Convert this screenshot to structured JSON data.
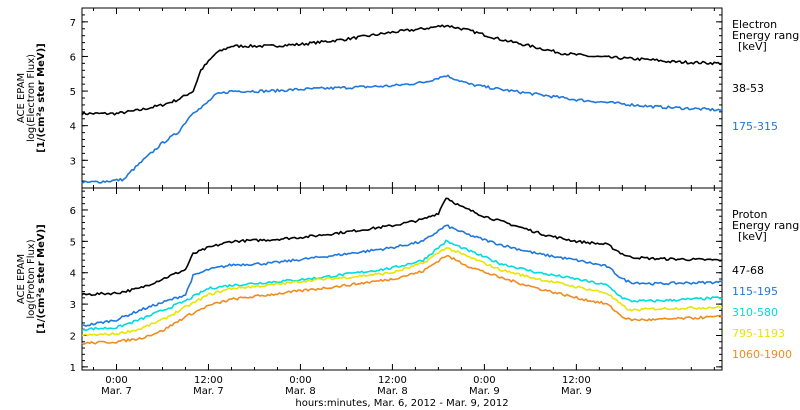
{
  "chart_data": [
    {
      "type": "line",
      "panel": "electron",
      "ylabel_lines": [
        "ACE EPAM",
        "log(Electron Flux)",
        "[1/(cm²s ster MeV)]"
      ],
      "ylim": [
        2.2,
        7.4
      ],
      "yticks": [
        3,
        4,
        5,
        6,
        7
      ],
      "legend_title_lines": [
        "Electron",
        "Energy ranges",
        "[keV]"
      ],
      "grid": false,
      "series": [
        {
          "name": "38-53",
          "color": "#000000",
          "points": [
            [
              -4.5,
              4.35
            ],
            [
              0,
              4.35
            ],
            [
              3,
              4.45
            ],
            [
              6,
              4.6
            ],
            [
              8,
              4.75
            ],
            [
              10,
              5.0
            ],
            [
              11,
              5.6
            ],
            [
              13,
              6.1
            ],
            [
              15,
              6.3
            ],
            [
              20,
              6.3
            ],
            [
              24,
              6.35
            ],
            [
              30,
              6.5
            ],
            [
              36,
              6.7
            ],
            [
              40,
              6.8
            ],
            [
              43,
              6.9
            ],
            [
              46,
              6.75
            ],
            [
              50,
              6.5
            ],
            [
              54,
              6.3
            ],
            [
              58,
              6.1
            ],
            [
              62,
              6.0
            ],
            [
              66,
              5.95
            ],
            [
              70,
              5.9
            ],
            [
              72,
              5.85
            ],
            [
              79,
              5.8
            ]
          ]
        },
        {
          "name": "175-315",
          "color": "#1e78dc",
          "points": [
            [
              -4.5,
              2.35
            ],
            [
              -1,
              2.4
            ],
            [
              1,
              2.45
            ],
            [
              2,
              2.7
            ],
            [
              4,
              3.1
            ],
            [
              6,
              3.5
            ],
            [
              8,
              3.8
            ],
            [
              10,
              4.4
            ],
            [
              11,
              4.5
            ],
            [
              13,
              4.9
            ],
            [
              15,
              5.0
            ],
            [
              20,
              5.0
            ],
            [
              24,
              5.05
            ],
            [
              30,
              5.1
            ],
            [
              36,
              5.15
            ],
            [
              40,
              5.25
            ],
            [
              43,
              5.45
            ],
            [
              46,
              5.2
            ],
            [
              50,
              5.05
            ],
            [
              55,
              4.9
            ],
            [
              60,
              4.75
            ],
            [
              65,
              4.65
            ],
            [
              70,
              4.55
            ],
            [
              79,
              4.45
            ]
          ]
        }
      ]
    },
    {
      "type": "line",
      "panel": "proton",
      "ylabel_lines": [
        "ACE EPAM",
        "log(Proton Flux)",
        "[1/(cm²s ster MeV)]"
      ],
      "ylim": [
        0.9,
        6.7
      ],
      "yticks": [
        1,
        2,
        3,
        4,
        5,
        6
      ],
      "legend_title_lines": [
        "Proton",
        "Energy ranges",
        "[keV]"
      ],
      "grid": false,
      "series": [
        {
          "name": "47-68",
          "color": "#000000",
          "points": [
            [
              -4.5,
              3.3
            ],
            [
              0,
              3.35
            ],
            [
              3,
              3.5
            ],
            [
              6,
              3.8
            ],
            [
              9,
              4.1
            ],
            [
              10,
              4.6
            ],
            [
              12,
              4.8
            ],
            [
              15,
              5.0
            ],
            [
              20,
              5.05
            ],
            [
              25,
              5.15
            ],
            [
              30,
              5.3
            ],
            [
              36,
              5.5
            ],
            [
              40,
              5.7
            ],
            [
              42,
              5.9
            ],
            [
              43,
              6.4
            ],
            [
              45,
              6.1
            ],
            [
              48,
              5.8
            ],
            [
              52,
              5.5
            ],
            [
              56,
              5.2
            ],
            [
              60,
              5.0
            ],
            [
              64,
              4.9
            ],
            [
              66,
              4.6
            ],
            [
              67,
              4.5
            ],
            [
              70,
              4.45
            ],
            [
              79,
              4.4
            ]
          ]
        },
        {
          "name": "115-195",
          "color": "#1e78dc",
          "points": [
            [
              -4.5,
              2.3
            ],
            [
              0,
              2.5
            ],
            [
              3,
              2.8
            ],
            [
              6,
              3.05
            ],
            [
              9,
              3.3
            ],
            [
              10,
              3.9
            ],
            [
              12,
              4.1
            ],
            [
              15,
              4.25
            ],
            [
              20,
              4.3
            ],
            [
              25,
              4.45
            ],
            [
              30,
              4.6
            ],
            [
              36,
              4.8
            ],
            [
              40,
              5.0
            ],
            [
              43,
              5.5
            ],
            [
              46,
              5.2
            ],
            [
              50,
              4.9
            ],
            [
              55,
              4.6
            ],
            [
              60,
              4.4
            ],
            [
              64,
              4.2
            ],
            [
              66,
              3.8
            ],
            [
              67,
              3.7
            ],
            [
              70,
              3.65
            ],
            [
              79,
              3.7
            ]
          ]
        },
        {
          "name": "310-580",
          "color": "#00dcdc",
          "points": [
            [
              -4.5,
              2.2
            ],
            [
              0,
              2.25
            ],
            [
              3,
              2.5
            ],
            [
              6,
              2.8
            ],
            [
              9,
              3.1
            ],
            [
              12,
              3.5
            ],
            [
              15,
              3.6
            ],
            [
              20,
              3.7
            ],
            [
              25,
              3.8
            ],
            [
              30,
              3.95
            ],
            [
              36,
              4.15
            ],
            [
              40,
              4.4
            ],
            [
              43,
              5.0
            ],
            [
              46,
              4.7
            ],
            [
              50,
              4.3
            ],
            [
              55,
              4.0
            ],
            [
              60,
              3.8
            ],
            [
              64,
              3.6
            ],
            [
              66,
              3.2
            ],
            [
              67,
              3.1
            ],
            [
              70,
              3.1
            ],
            [
              79,
              3.2
            ]
          ]
        },
        {
          "name": "795-1193",
          "color": "#e6e600",
          "points": [
            [
              -4.5,
              2.0
            ],
            [
              0,
              2.05
            ],
            [
              3,
              2.2
            ],
            [
              6,
              2.5
            ],
            [
              9,
              2.9
            ],
            [
              12,
              3.3
            ],
            [
              15,
              3.5
            ],
            [
              20,
              3.6
            ],
            [
              25,
              3.75
            ],
            [
              30,
              3.85
            ],
            [
              36,
              4.0
            ],
            [
              40,
              4.3
            ],
            [
              43,
              4.8
            ],
            [
              46,
              4.5
            ],
            [
              50,
              4.1
            ],
            [
              55,
              3.8
            ],
            [
              60,
              3.55
            ],
            [
              64,
              3.35
            ],
            [
              66,
              2.95
            ],
            [
              67,
              2.8
            ],
            [
              70,
              2.85
            ],
            [
              79,
              2.9
            ]
          ]
        },
        {
          "name": "1060-1900",
          "color": "#f08c1e",
          "points": [
            [
              -4.5,
              1.75
            ],
            [
              0,
              1.8
            ],
            [
              3,
              1.9
            ],
            [
              6,
              2.15
            ],
            [
              9,
              2.6
            ],
            [
              12,
              2.95
            ],
            [
              15,
              3.15
            ],
            [
              20,
              3.3
            ],
            [
              25,
              3.45
            ],
            [
              30,
              3.6
            ],
            [
              36,
              3.8
            ],
            [
              40,
              4.05
            ],
            [
              43,
              4.55
            ],
            [
              46,
              4.2
            ],
            [
              50,
              3.85
            ],
            [
              55,
              3.5
            ],
            [
              60,
              3.2
            ],
            [
              64,
              3.0
            ],
            [
              66,
              2.6
            ],
            [
              67,
              2.5
            ],
            [
              70,
              2.5
            ],
            [
              79,
              2.6
            ]
          ]
        }
      ]
    }
  ],
  "x_axis": {
    "range_hours": [
      -4.5,
      79
    ],
    "ticks": [
      {
        "h": 0,
        "time": "0:00",
        "date": "Mar. 7"
      },
      {
        "h": 12,
        "time": "12:00",
        "date": "Mar. 7"
      },
      {
        "h": 24,
        "time": "0:00",
        "date": "Mar. 8"
      },
      {
        "h": 36,
        "time": "12:00",
        "date": "Mar. 8"
      },
      {
        "h": 48,
        "time": "0:00",
        "date": "Mar. 9"
      },
      {
        "h": 60,
        "time": "12:00",
        "date": "Mar. 9"
      }
    ],
    "xlabel": "hours:minutes, Mar.  6, 2012 - Mar.  9, 2012"
  }
}
